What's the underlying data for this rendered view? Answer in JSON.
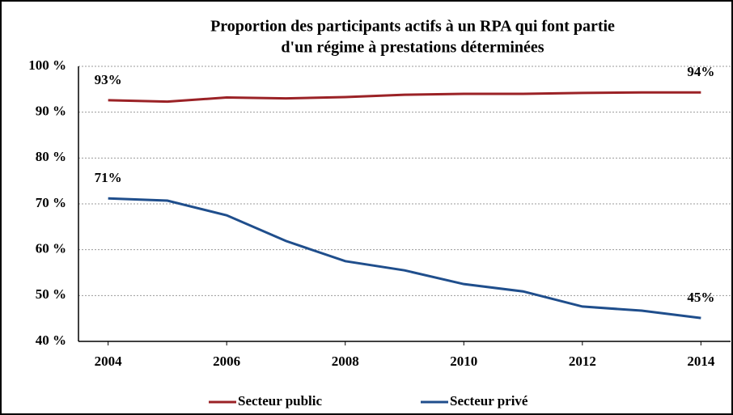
{
  "chart_data": {
    "type": "line",
    "title": [
      "Proportion des participants actifs à un RPA qui font partie",
      "d'un régime à prestations déterminées"
    ],
    "x": [
      2004,
      2005,
      2006,
      2007,
      2008,
      2009,
      2010,
      2011,
      2012,
      2013,
      2014
    ],
    "xlim": [
      2003.5,
      2014.5
    ],
    "xticks": [
      2004,
      2006,
      2008,
      2010,
      2012,
      2014
    ],
    "ylim": [
      40,
      100
    ],
    "yticks": [
      {
        "value": 40,
        "label": "40 %"
      },
      {
        "value": 50,
        "label": "50 %"
      },
      {
        "value": 60,
        "label": "60 %"
      },
      {
        "value": 70,
        "label": "70 %"
      },
      {
        "value": 80,
        "label": "80 %"
      },
      {
        "value": 90,
        "label": "90 %"
      },
      {
        "value": 100,
        "label": "100 %"
      }
    ],
    "grid": true,
    "legend": "bottom",
    "series": [
      {
        "name": "Secteur public",
        "color": "#9b2226",
        "values": [
          92.6,
          92.3,
          93.2,
          93.0,
          93.3,
          93.8,
          94.0,
          94.0,
          94.2,
          94.3,
          94.3
        ],
        "value_labels": [
          "93%",
          null,
          null,
          null,
          null,
          null,
          null,
          null,
          null,
          null,
          "94%"
        ]
      },
      {
        "name": "Secteur privé",
        "color": "#1f4e8c",
        "values": [
          71.2,
          70.7,
          67.5,
          61.9,
          57.5,
          55.5,
          52.5,
          50.9,
          47.6,
          46.7,
          45.1
        ],
        "value_labels": [
          "71%",
          null,
          null,
          null,
          null,
          null,
          null,
          null,
          null,
          null,
          "45%"
        ]
      }
    ]
  }
}
